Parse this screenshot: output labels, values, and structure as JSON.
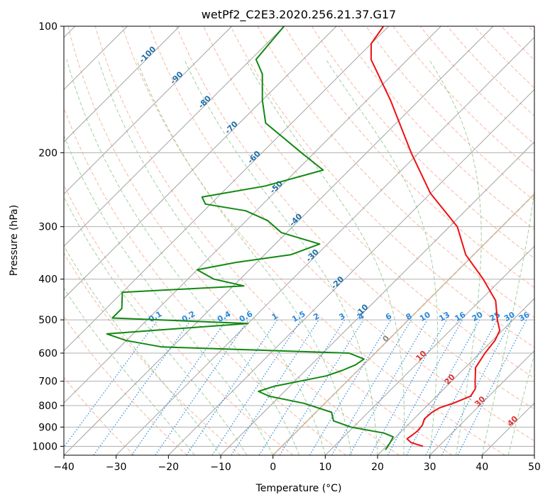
{
  "chart_data": {
    "type": "line",
    "title": "wetPf2_C2E3.2020.256.21.37.G17",
    "xlabel": "Temperature (°C)",
    "ylabel": "Pressure (hPa)",
    "x_ticks": [
      -40,
      -30,
      -20,
      -10,
      0,
      10,
      20,
      30,
      40,
      50
    ],
    "y_ticks": [
      100,
      200,
      300,
      400,
      500,
      600,
      700,
      800,
      900,
      1000
    ],
    "xlim": [
      -40,
      50
    ],
    "ylim": [
      1050,
      100
    ],
    "y_scale": "log",
    "grid": true,
    "diagram": "skew-T log-P",
    "colors": {
      "temperature": "#ee1111",
      "dewpoint": "#118811",
      "dry_adiabat": "#f4a080",
      "moist_adiabat": "#88c488",
      "mixing_ratio": "#2a88dd",
      "isotherm": "#999999",
      "freezing_level": "#ddbb99",
      "cloud_ice_label": "#1f6fa8",
      "lifted_label": "#dd3333"
    },
    "series": [
      {
        "name": "Temperature",
        "color": "#ee1111",
        "points": [
          [
            1000,
            27.0
          ],
          [
            980,
            24.0
          ],
          [
            960,
            22.5
          ],
          [
            940,
            22.8
          ],
          [
            920,
            23.0
          ],
          [
            890,
            22.8
          ],
          [
            860,
            22.0
          ],
          [
            830,
            22.2
          ],
          [
            810,
            22.8
          ],
          [
            790,
            24.5
          ],
          [
            760,
            26.5
          ],
          [
            730,
            26.0
          ],
          [
            700,
            24.5
          ],
          [
            650,
            22.0
          ],
          [
            600,
            21.0
          ],
          [
            560,
            20.5
          ],
          [
            530,
            19.5
          ],
          [
            500,
            17.0
          ],
          [
            450,
            13.0
          ],
          [
            400,
            6.5
          ],
          [
            350,
            -1.5
          ],
          [
            300,
            -8.5
          ],
          [
            250,
            -20.0
          ],
          [
            200,
            -31.5
          ],
          [
            150,
            -45.5
          ],
          [
            120,
            -57.0
          ],
          [
            110,
            -60.0
          ],
          [
            100,
            -61.0
          ]
        ]
      },
      {
        "name": "Dewpoint",
        "color": "#118811",
        "points": [
          [
            1020,
            20.5
          ],
          [
            980,
            20.0
          ],
          [
            950,
            19.5
          ],
          [
            930,
            17.0
          ],
          [
            900,
            9.5
          ],
          [
            870,
            5.0
          ],
          [
            830,
            3.0
          ],
          [
            790,
            -4.0
          ],
          [
            760,
            -12.0
          ],
          [
            740,
            -15.0
          ],
          [
            720,
            -13.0
          ],
          [
            680,
            -5.0
          ],
          [
            660,
            -3.0
          ],
          [
            640,
            -1.5
          ],
          [
            620,
            -1.0
          ],
          [
            600,
            -5.0
          ],
          [
            580,
            -42.0
          ],
          [
            560,
            -50.0
          ],
          [
            540,
            -55.0
          ],
          [
            510,
            -30.0
          ],
          [
            495,
            -57.0
          ],
          [
            470,
            -57.0
          ],
          [
            430,
            -60.0
          ],
          [
            415,
            -38.0
          ],
          [
            400,
            -45.0
          ],
          [
            380,
            -50.0
          ],
          [
            365,
            -44.0
          ],
          [
            350,
            -35.0
          ],
          [
            330,
            -31.5
          ],
          [
            310,
            -41.0
          ],
          [
            290,
            -46.0
          ],
          [
            275,
            -52.0
          ],
          [
            265,
            -61.0
          ],
          [
            255,
            -63.0
          ],
          [
            240,
            -53.0
          ],
          [
            220,
            -45.0
          ],
          [
            200,
            -52.5
          ],
          [
            170,
            -65.0
          ],
          [
            150,
            -70.0
          ],
          [
            130,
            -75.0
          ],
          [
            120,
            -79.0
          ],
          [
            110,
            -79.5
          ],
          [
            100,
            -80.0
          ]
        ]
      }
    ],
    "isotherm_labels": [
      "-100",
      "-90",
      "-80",
      "-70",
      "-60",
      "-50",
      "-40",
      "-30",
      "-20",
      "-10",
      "0"
    ],
    "mixing_ratio_labels": [
      "0.1",
      "0.2",
      "0.4",
      "0.6",
      "1",
      "1.5",
      "2",
      "3",
      "4",
      "6",
      "8",
      "10",
      "13",
      "16",
      "20",
      "25",
      "30",
      "36"
    ],
    "lifted_labels": [
      "10",
      "20",
      "30",
      "40"
    ]
  }
}
